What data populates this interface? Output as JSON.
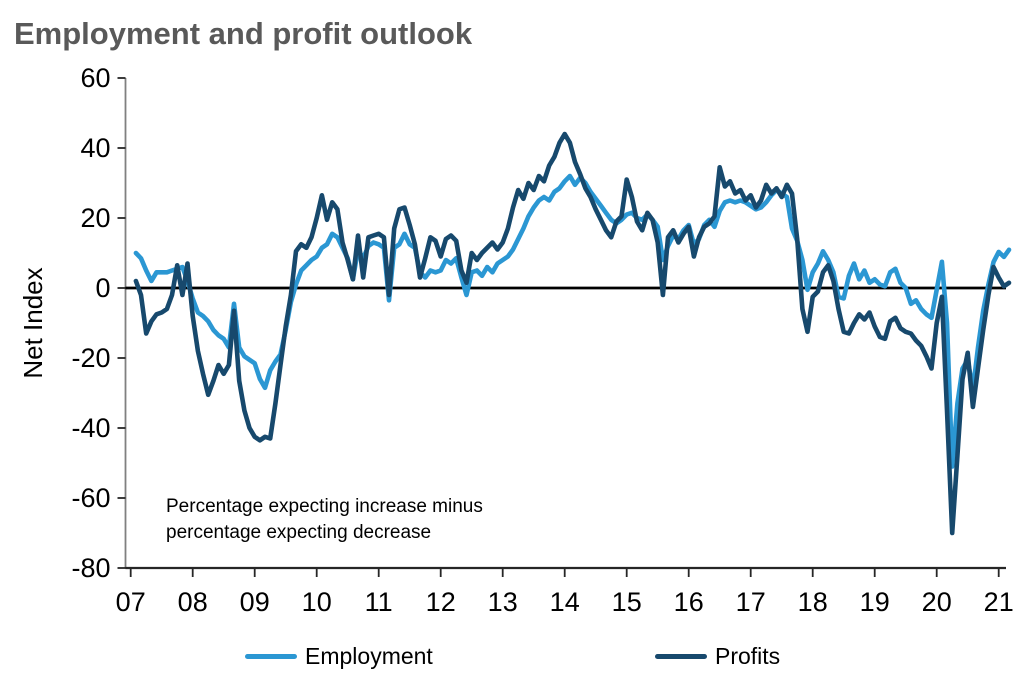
{
  "title": "Employment and profit outlook",
  "chart_data": {
    "type": "line",
    "title": "Employment and profit outlook",
    "xlabel": "",
    "ylabel": "Net Index",
    "ylim": [
      -80,
      60
    ],
    "ytick_step": 20,
    "yticklabels": [
      "60",
      "40",
      "20",
      "0",
      "-20",
      "-40",
      "-60",
      "-80"
    ],
    "xticklabels": [
      "07",
      "08",
      "09",
      "10",
      "11",
      "12",
      "13",
      "14",
      "15",
      "16",
      "17",
      "18",
      "19",
      "20",
      "21"
    ],
    "x_frequency": "monthly",
    "x_range": {
      "start": "2007-02",
      "end": "2021-03"
    },
    "grid": false,
    "zero_line": true,
    "legend_position": "bottom",
    "annotation": [
      "Percentage expecting increase minus",
      "percentage expecting decrease"
    ],
    "series": [
      {
        "name": "Employment",
        "color": "#2b97d3",
        "values": [
          10,
          8.5,
          5,
          2,
          4.5,
          4.5,
          4.5,
          5,
          5.5,
          6,
          2,
          -3,
          -7,
          -8,
          -9.5,
          -12,
          -13.5,
          -14.5,
          -17,
          -4.5,
          -17,
          -19.5,
          -20.5,
          -21.5,
          -26,
          -28.5,
          -23.5,
          -21,
          -19,
          -12,
          -4,
          1,
          5,
          6.5,
          8,
          9,
          11.5,
          12.5,
          15.5,
          14.5,
          11.5,
          8.5,
          2.5,
          11,
          8.5,
          12,
          13,
          12.5,
          11.5,
          -3.5,
          11.5,
          12.5,
          15.5,
          12.5,
          11.5,
          4.5,
          3,
          5,
          4.5,
          5,
          8,
          7,
          8.5,
          3,
          -2,
          4.5,
          5,
          3.5,
          6,
          4.5,
          7,
          8,
          9,
          11,
          14,
          17,
          20.5,
          23,
          25,
          26,
          25,
          27.5,
          28.5,
          30.5,
          32,
          29.5,
          31.5,
          30,
          27.5,
          25.5,
          23.5,
          21.5,
          19.5,
          18.5,
          19.5,
          21,
          21.5,
          20,
          19.5,
          21,
          19.5,
          17.5,
          8,
          12,
          15,
          14,
          16.5,
          18,
          12.5,
          14,
          18,
          19.5,
          17.5,
          22,
          24.5,
          25,
          24.5,
          25,
          24.5,
          23.5,
          22.5,
          23,
          24.5,
          26.5,
          28,
          27,
          26,
          17,
          13.5,
          8,
          -0.5,
          4.5,
          7,
          10.5,
          8,
          4.5,
          -2.5,
          -3,
          3.5,
          7,
          2.5,
          5,
          1.5,
          2.5,
          1,
          0.5,
          4.5,
          5.5,
          1.5,
          0,
          -4.5,
          -3.5,
          -6,
          -7.5,
          -8.5,
          -0.5,
          7.5,
          -10,
          -51,
          -33,
          -23,
          -20.5,
          -29,
          -17,
          -6.5,
          1,
          7.4,
          10.3,
          8.9,
          10.9
        ]
      },
      {
        "name": "Profits",
        "color": "#17496d",
        "values": [
          2,
          -2,
          -13,
          -9.5,
          -7.5,
          -7,
          -6,
          -2,
          6.5,
          -2,
          7,
          -8,
          -18,
          -24.5,
          -30.5,
          -26.5,
          -22,
          -24.5,
          -22,
          -6.5,
          -26.5,
          -35,
          -40,
          -42.5,
          -43.5,
          -42.5,
          -43,
          -33,
          -22,
          -11,
          -2,
          10.5,
          12.5,
          11.5,
          14.5,
          20,
          26.5,
          19.5,
          24.5,
          22.5,
          13,
          8,
          2.5,
          15,
          3,
          14.5,
          15,
          15.5,
          14.5,
          -2,
          17,
          22.5,
          23,
          18,
          12.5,
          3,
          8.5,
          14.5,
          13.5,
          9,
          14,
          15,
          13.5,
          5,
          1.5,
          10,
          8,
          10,
          11.5,
          13,
          11,
          13,
          17,
          23,
          28,
          25.5,
          30,
          28,
          32,
          30.5,
          35,
          37.5,
          41.5,
          44,
          41.5,
          36,
          32.5,
          28.5,
          26,
          22.5,
          19.5,
          16.5,
          14.5,
          19,
          20.5,
          31,
          26,
          19,
          16.5,
          21.5,
          19.5,
          13,
          -2,
          14.5,
          16.5,
          13,
          15.5,
          17.5,
          9,
          14.5,
          17.5,
          18.5,
          20.5,
          34.5,
          29,
          30.5,
          27,
          28,
          25,
          26.5,
          23,
          25,
          29.5,
          27,
          28.5,
          26,
          29.5,
          27,
          14,
          -6,
          -12.5,
          -2.5,
          -1,
          4.5,
          6.5,
          2,
          -6,
          -12.5,
          -13,
          -10,
          -7.5,
          -9,
          -7,
          -11,
          -14,
          -14.5,
          -9.5,
          -8.5,
          -11.5,
          -12.5,
          -13,
          -15,
          -16.5,
          -19.5,
          -23,
          -10,
          -2.5,
          -35,
          -70,
          -48,
          -26,
          -18.5,
          -34,
          -23,
          -12,
          -2,
          6,
          3,
          0.5,
          1.5
        ]
      }
    ],
    "colors": {
      "employment": "#2b97d3",
      "profits": "#17496d",
      "title": "#595959",
      "axis": "#262626"
    }
  }
}
